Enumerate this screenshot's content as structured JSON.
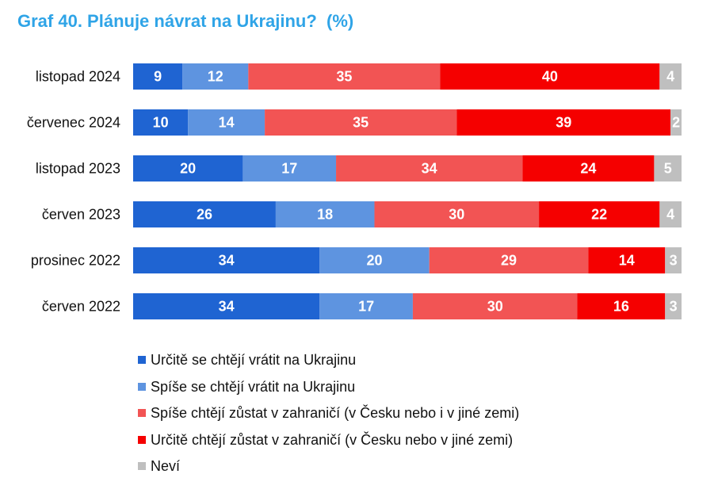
{
  "title": "Graf 40. Plánuje návrat na Ukrajinu?  (%)",
  "chart_data": {
    "type": "bar",
    "orientation": "horizontal",
    "stacked": true,
    "categories": [
      "listopad 2024",
      "červenec 2024",
      "listopad 2023",
      "červen 2023",
      "prosinec 2022",
      "červen 2022"
    ],
    "series": [
      {
        "name": "Určitě se chtějí vrátit na Ukrajinu",
        "color": "#1F64D2",
        "values": [
          9,
          10,
          20,
          26,
          34,
          34
        ]
      },
      {
        "name": "Spíše se chtějí vrátit na Ukrajinu",
        "color": "#5E94E0",
        "values": [
          12,
          14,
          17,
          18,
          20,
          17
        ]
      },
      {
        "name": "Spíše chtějí zůstat v zahraničí (v Česku nebo i v jiné zemi)",
        "color": "#F25454",
        "values": [
          35,
          35,
          34,
          30,
          29,
          30
        ]
      },
      {
        "name": "Určitě chtějí zůstat v zahraničí (v Česku nebo v jiné zemi)",
        "color": "#F50000",
        "values": [
          40,
          39,
          24,
          22,
          14,
          16
        ]
      },
      {
        "name": "Neví",
        "color": "#BFBFBF",
        "values": [
          4,
          2,
          5,
          4,
          3,
          3
        ]
      }
    ],
    "legend_position": "bottom",
    "grid": false
  }
}
